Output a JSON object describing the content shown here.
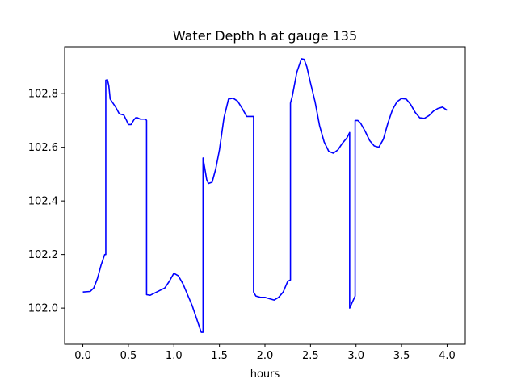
{
  "chart_data": {
    "type": "line",
    "title": "Water Depth h at gauge 135",
    "xlabel": "hours",
    "ylabel": "",
    "xlim": [
      -0.2,
      4.2
    ],
    "ylim": [
      101.865,
      102.975
    ],
    "x_ticks": [
      0.0,
      0.5,
      1.0,
      1.5,
      2.0,
      2.5,
      3.0,
      3.5,
      4.0
    ],
    "x_tick_labels": [
      "0.0",
      "0.5",
      "1.0",
      "1.5",
      "2.0",
      "2.5",
      "3.0",
      "3.5",
      "4.0"
    ],
    "y_ticks": [
      102.0,
      102.2,
      102.4,
      102.6,
      102.8
    ],
    "y_tick_labels": [
      "102.0",
      "102.2",
      "102.4",
      "102.6",
      "102.8"
    ],
    "grid": false,
    "colors": {
      "line": "#0000ff",
      "axes": "#000000",
      "background": "#ffffff"
    },
    "series": [
      {
        "x": [
          0.0,
          0.08,
          0.12,
          0.16,
          0.2,
          0.24,
          0.252,
          0.252,
          0.27,
          0.285,
          0.3,
          0.33,
          0.36,
          0.4,
          0.45,
          0.48,
          0.5,
          0.53,
          0.56,
          0.58,
          0.6,
          0.63,
          0.66,
          0.69,
          0.7,
          0.7,
          0.74,
          0.8,
          0.9,
          0.95,
          1.0,
          1.05,
          1.1,
          1.15,
          1.2,
          1.25,
          1.3,
          1.32,
          1.32,
          1.34,
          1.36,
          1.38,
          1.42,
          1.46,
          1.5,
          1.55,
          1.6,
          1.65,
          1.7,
          1.75,
          1.8,
          1.85,
          1.875,
          1.875,
          1.9,
          1.95,
          2.0,
          2.05,
          2.1,
          2.15,
          2.2,
          2.25,
          2.28,
          2.28,
          2.3,
          2.35,
          2.4,
          2.43,
          2.46,
          2.5,
          2.55,
          2.6,
          2.65,
          2.7,
          2.75,
          2.8,
          2.85,
          2.9,
          2.93,
          2.93,
          2.97,
          2.99,
          2.99,
          3.02,
          3.05,
          3.1,
          3.15,
          3.2,
          3.25,
          3.3,
          3.35,
          3.4,
          3.45,
          3.5,
          3.55,
          3.6,
          3.65,
          3.7,
          3.75,
          3.8,
          3.85,
          3.9,
          3.95,
          4.0
        ],
        "y": [
          102.06,
          102.062,
          102.075,
          102.11,
          102.16,
          102.2,
          102.2,
          102.85,
          102.852,
          102.83,
          102.78,
          102.765,
          102.75,
          102.725,
          102.72,
          102.7,
          102.685,
          102.685,
          102.702,
          102.71,
          102.71,
          102.705,
          102.705,
          102.705,
          102.7,
          102.05,
          102.048,
          102.058,
          102.075,
          102.1,
          102.13,
          102.12,
          102.09,
          102.05,
          102.01,
          101.96,
          101.91,
          101.91,
          102.56,
          102.52,
          102.48,
          102.465,
          102.47,
          102.52,
          102.59,
          102.71,
          102.78,
          102.783,
          102.772,
          102.745,
          102.715,
          102.715,
          102.715,
          102.06,
          102.045,
          102.04,
          102.04,
          102.035,
          102.03,
          102.04,
          102.06,
          102.1,
          102.105,
          102.765,
          102.79,
          102.88,
          102.93,
          102.928,
          102.9,
          102.84,
          102.77,
          102.68,
          102.62,
          102.585,
          102.578,
          102.59,
          102.615,
          102.635,
          102.655,
          102.0,
          102.03,
          102.045,
          102.7,
          102.7,
          102.69,
          102.66,
          102.625,
          102.605,
          102.6,
          102.63,
          102.69,
          102.74,
          102.77,
          102.782,
          102.78,
          102.76,
          102.73,
          102.71,
          102.708,
          102.718,
          102.735,
          102.745,
          102.75,
          102.738
        ]
      }
    ]
  }
}
